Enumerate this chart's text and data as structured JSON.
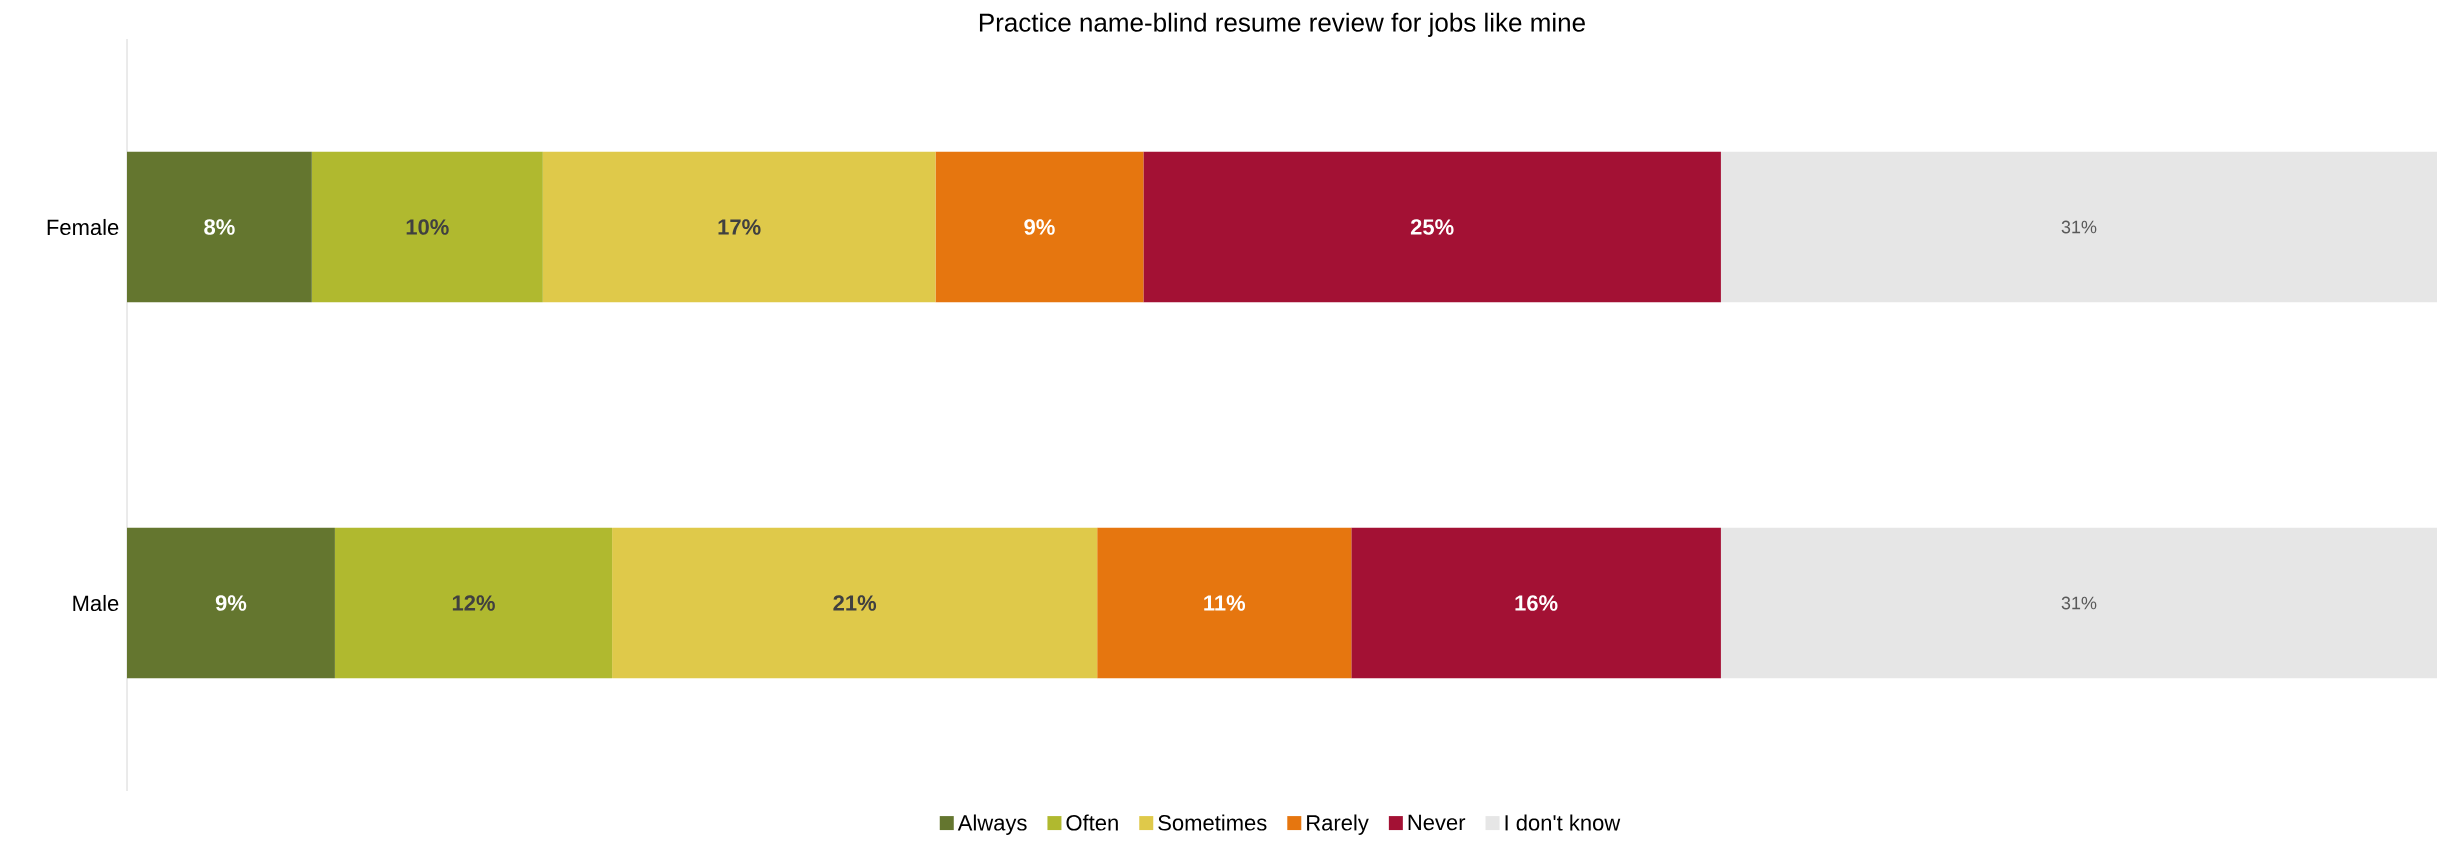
{
  "chart_data": {
    "type": "bar",
    "orientation": "horizontal",
    "stacked": true,
    "title": "Practice name-blind resume review for jobs like mine",
    "categories": [
      "Female",
      "Male"
    ],
    "series": [
      {
        "name": "Always",
        "color": "#64762f",
        "values": [
          8,
          9
        ],
        "value_labels": [
          "8%",
          "9%"
        ]
      },
      {
        "name": "Often",
        "color": "#b0b92f",
        "values": [
          10,
          12
        ],
        "value_labels": [
          "10%",
          "12%"
        ]
      },
      {
        "name": "Sometimes",
        "color": "#dfc94a",
        "values": [
          17,
          21
        ],
        "value_labels": [
          "17%",
          "21%"
        ]
      },
      {
        "name": "Rarely",
        "color": "#e6760f",
        "values": [
          9,
          11
        ],
        "value_labels": [
          "9%",
          "11%"
        ]
      },
      {
        "name": "Never",
        "color": "#a31134",
        "values": [
          25,
          16
        ],
        "value_labels": [
          "25%",
          "16%"
        ]
      },
      {
        "name": "I don't know",
        "color": "#e6e6e6",
        "values": [
          31,
          31
        ],
        "value_labels": [
          "31%",
          "31%"
        ]
      }
    ],
    "legend": "bottom"
  }
}
